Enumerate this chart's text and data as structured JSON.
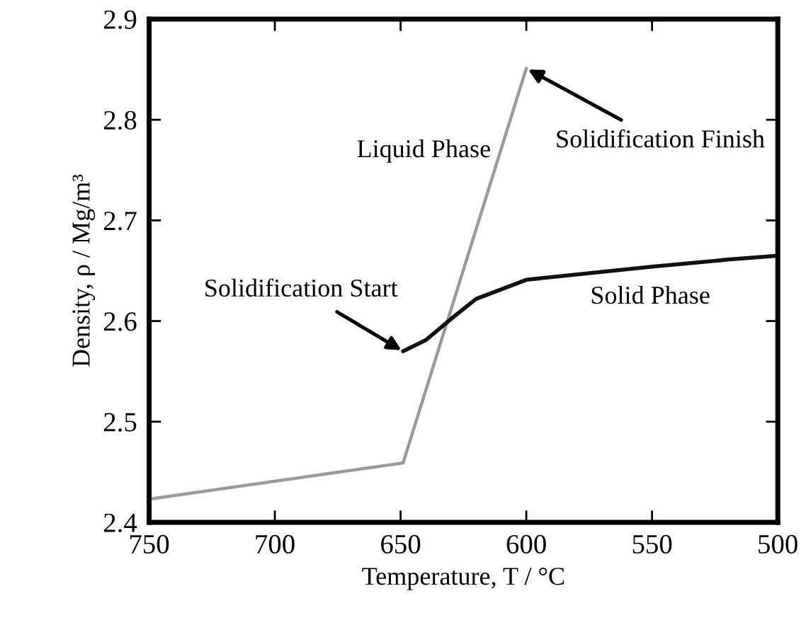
{
  "chart_data": {
    "type": "line",
    "xlabel": "Temperature, T / °C",
    "ylabel": "Density, ρ / Mg/m³",
    "xlim": [
      750,
      500
    ],
    "xticks": [
      750,
      700,
      650,
      600,
      550,
      500
    ],
    "ylim": [
      2.4,
      2.9
    ],
    "yticks": [
      2.4,
      2.5,
      2.6,
      2.7,
      2.8,
      2.9
    ],
    "grid": false,
    "legend": false,
    "marker": "none",
    "line_style": "solid",
    "series": [
      {
        "name": "Liquid Phase",
        "color": "#999999",
        "x": [
          750,
          649,
          600
        ],
        "values": [
          2.423,
          2.459,
          2.851
        ]
      },
      {
        "name": "Solid Phase",
        "color": "#111111",
        "x": [
          649,
          640,
          630,
          620,
          600,
          550,
          520,
          500
        ],
        "values": [
          2.57,
          2.581,
          2.602,
          2.622,
          2.641,
          2.654,
          2.661,
          2.665
        ]
      }
    ],
    "annotations": [
      {
        "text": "Solidification Start",
        "x": 649,
        "y": 2.57
      },
      {
        "text": "Solidification Finish",
        "x": 600,
        "y": 2.851
      }
    ]
  }
}
